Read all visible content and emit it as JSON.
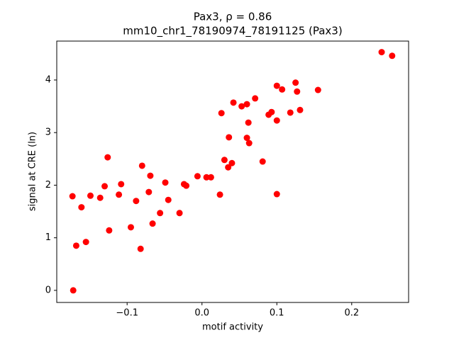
{
  "chart_data": {
    "type": "scatter",
    "title": "Pax3, ρ = 0.86",
    "subtitle": "mm10_chr1_78190974_78191125 (Pax3)",
    "x_label": "motif activity",
    "y_label": "signal at CRE (ln)",
    "color": "#ff0000",
    "xlim": [
      -0.194,
      0.276
    ],
    "ylim": [
      -0.23,
      4.74
    ],
    "xticks": [
      {
        "value": -0.1,
        "label": "−0.1"
      },
      {
        "value": 0.0,
        "label": "0.0"
      },
      {
        "value": 0.1,
        "label": "0.1"
      },
      {
        "value": 0.2,
        "label": "0.2"
      }
    ],
    "yticks": [
      0,
      1,
      2,
      3,
      4
    ],
    "x": [
      -0.172,
      -0.173,
      -0.168,
      -0.161,
      -0.155,
      -0.149,
      -0.136,
      -0.13,
      -0.126,
      -0.124,
      -0.111,
      -0.108,
      -0.095,
      -0.088,
      -0.082,
      -0.08,
      -0.071,
      -0.069,
      -0.066,
      -0.056,
      -0.049,
      -0.045,
      -0.03,
      -0.024,
      -0.021,
      -0.006,
      0.006,
      0.012,
      0.024,
      0.026,
      0.03,
      0.035,
      0.036,
      0.04,
      0.042,
      0.053,
      0.06,
      0.06,
      0.062,
      0.063,
      0.071,
      0.081,
      0.089,
      0.093,
      0.1,
      0.1,
      0.1,
      0.107,
      0.118,
      0.125,
      0.127,
      0.131,
      0.155,
      0.24,
      0.254
    ],
    "values": [
      0.0,
      1.79,
      0.85,
      1.58,
      0.92,
      1.8,
      1.76,
      1.98,
      2.53,
      1.14,
      1.82,
      2.02,
      1.2,
      1.7,
      0.79,
      2.37,
      1.87,
      2.18,
      1.27,
      1.47,
      2.05,
      1.72,
      1.47,
      2.02,
      1.99,
      2.17,
      2.15,
      2.15,
      1.82,
      3.37,
      2.48,
      2.34,
      2.91,
      2.42,
      3.57,
      3.5,
      3.54,
      2.9,
      3.19,
      2.8,
      3.65,
      2.45,
      3.34,
      3.39,
      1.83,
      3.23,
      3.89,
      3.82,
      3.38,
      3.95,
      3.78,
      3.43,
      3.81,
      4.53,
      4.46
    ]
  }
}
